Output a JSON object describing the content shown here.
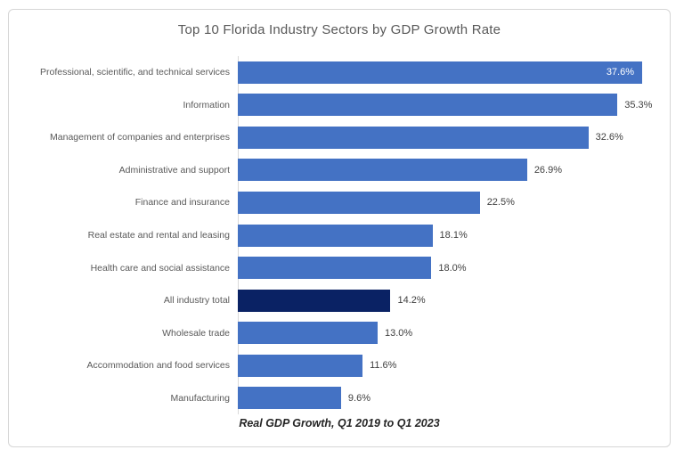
{
  "colors": {
    "bar_primary": "#4472C4",
    "bar_highlight": "#0A2264",
    "axis_line": "#D9D9D9",
    "category_label": "#595959",
    "value_label": "#404040",
    "value_label_inside": "#FFFFFF",
    "title": "#595959",
    "card_border": "#D6D6D6"
  },
  "chart_data": {
    "type": "bar",
    "orientation": "horizontal",
    "title": "Top 10 Florida Industry Sectors by GDP Growth Rate",
    "footnote": "Real GDP Growth, Q1 2019 to Q1 2023",
    "categories": [
      "Professional, scientific, and technical services",
      "Information",
      "Management of companies and enterprises",
      "Administrative and support",
      "Finance and insurance",
      "Real estate and rental and leasing",
      "Health care and social assistance",
      "All industry total",
      "Wholesale trade",
      "Accommodation and food services",
      "Manufacturing"
    ],
    "values": [
      37.6,
      35.3,
      32.6,
      26.9,
      22.5,
      18.1,
      18.0,
      14.2,
      13.0,
      11.6,
      9.6
    ],
    "value_labels": [
      "37.6%",
      "35.3%",
      "32.6%",
      "26.9%",
      "22.5%",
      "18.1%",
      "18.0%",
      "14.2%",
      "13.0%",
      "11.6%",
      "9.6%"
    ],
    "units": "%",
    "xlim": [
      0,
      40
    ],
    "grid": false,
    "legend": false,
    "highlight_index": 7,
    "inside_label_indices": [
      0
    ]
  }
}
